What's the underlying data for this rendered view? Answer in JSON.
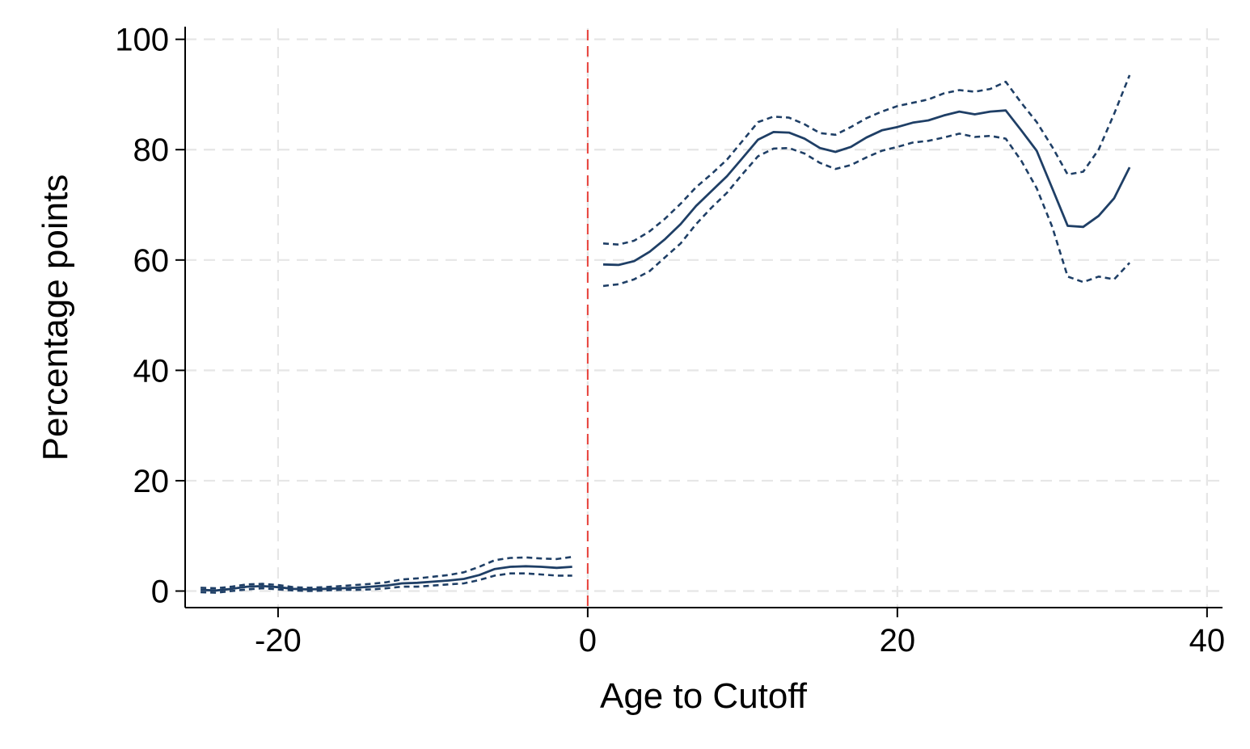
{
  "chart_data": {
    "type": "line",
    "title": "",
    "xlabel": "Age to Cutoff",
    "ylabel": "Percentage points",
    "xlim": [
      -26,
      41
    ],
    "ylim": [
      -3,
      102
    ],
    "xticks": [
      -20,
      0,
      20,
      40
    ],
    "yticks": [
      0,
      20,
      40,
      60,
      80,
      100
    ],
    "grid": true,
    "legend": "none",
    "cutoff_line": {
      "x": 0,
      "color": "#e8413a",
      "style": "dashed"
    },
    "colors": {
      "series": "#1f3f66",
      "grid": "#e6e6e6",
      "axis": "#000000"
    },
    "series": [
      {
        "segment": "below",
        "style": "solid",
        "x": [
          -25,
          -24,
          -23,
          -22,
          -21,
          -20,
          -19,
          -18,
          -17,
          -16,
          -15,
          -14,
          -13,
          -12,
          -11,
          -10,
          -9,
          -8,
          -7,
          -6,
          -5,
          -4,
          -3,
          -2,
          -1
        ],
        "y": [
          0.2,
          0.1,
          0.4,
          0.8,
          0.9,
          0.7,
          0.4,
          0.3,
          0.4,
          0.5,
          0.6,
          0.8,
          1.0,
          1.4,
          1.5,
          1.7,
          1.9,
          2.2,
          2.9,
          4.0,
          4.4,
          4.5,
          4.4,
          4.2,
          4.4
        ]
      },
      {
        "segment": "below",
        "style": "dashed",
        "x": [
          -25,
          -24,
          -23,
          -22,
          -21,
          -20,
          -19,
          -18,
          -17,
          -16,
          -15,
          -14,
          -13,
          -12,
          -11,
          -10,
          -9,
          -8,
          -7,
          -6,
          -5,
          -4,
          -3,
          -2,
          -1
        ],
        "y": [
          0.6,
          0.5,
          0.8,
          1.2,
          1.3,
          1.1,
          0.7,
          0.6,
          0.7,
          0.9,
          1.1,
          1.3,
          1.6,
          2.1,
          2.3,
          2.6,
          2.9,
          3.4,
          4.4,
          5.6,
          6.0,
          6.1,
          5.9,
          5.8,
          6.2
        ]
      },
      {
        "segment": "below",
        "style": "dashed",
        "x": [
          -25,
          -24,
          -23,
          -22,
          -21,
          -20,
          -19,
          -18,
          -17,
          -16,
          -15,
          -14,
          -13,
          -12,
          -11,
          -10,
          -9,
          -8,
          -7,
          -6,
          -5,
          -4,
          -3,
          -2,
          -1
        ],
        "y": [
          -0.2,
          -0.3,
          0.0,
          0.3,
          0.5,
          0.3,
          0.1,
          0.0,
          0.1,
          0.2,
          0.2,
          0.3,
          0.5,
          0.8,
          0.8,
          1.0,
          1.2,
          1.4,
          2.0,
          2.8,
          3.2,
          3.2,
          3.0,
          2.8,
          2.8
        ]
      },
      {
        "segment": "above",
        "style": "solid",
        "x": [
          1,
          2,
          3,
          4,
          5,
          6,
          7,
          8,
          9,
          10,
          11,
          12,
          13,
          14,
          15,
          16,
          17,
          18,
          19,
          20,
          21,
          22,
          23,
          24,
          25,
          26,
          27,
          28,
          29,
          30,
          31,
          32,
          33,
          34,
          35
        ],
        "y": [
          59.2,
          59.1,
          59.8,
          61.5,
          63.8,
          66.5,
          69.8,
          72.5,
          75.2,
          78.5,
          81.8,
          83.2,
          83.1,
          82.0,
          80.3,
          79.6,
          80.5,
          82.2,
          83.5,
          84.1,
          84.9,
          85.3,
          86.2,
          86.9,
          86.4,
          86.9,
          87.1,
          83.5,
          79.8,
          73.0,
          66.2,
          66.0,
          68.0,
          71.2,
          76.8
        ]
      },
      {
        "segment": "above",
        "style": "dashed",
        "x": [
          1,
          2,
          3,
          4,
          5,
          6,
          7,
          8,
          9,
          10,
          11,
          12,
          13,
          14,
          15,
          16,
          17,
          18,
          19,
          20,
          21,
          22,
          23,
          24,
          25,
          26,
          27,
          28,
          29,
          30,
          31,
          32,
          33,
          34,
          35
        ],
        "y": [
          63.0,
          62.8,
          63.5,
          65.2,
          67.5,
          70.2,
          73.2,
          75.6,
          78.2,
          81.6,
          85.0,
          86.0,
          85.8,
          84.6,
          83.0,
          82.7,
          84.1,
          85.7,
          86.9,
          87.9,
          88.5,
          89.1,
          90.2,
          90.8,
          90.5,
          91.0,
          92.3,
          88.5,
          85.0,
          80.5,
          75.5,
          76.0,
          80.0,
          86.5,
          93.5
        ]
      },
      {
        "segment": "above",
        "style": "dashed",
        "x": [
          1,
          2,
          3,
          4,
          5,
          6,
          7,
          8,
          9,
          10,
          11,
          12,
          13,
          14,
          15,
          16,
          17,
          18,
          19,
          20,
          21,
          22,
          23,
          24,
          25,
          26,
          27,
          28,
          29,
          30,
          31,
          32,
          33,
          34,
          35
        ],
        "y": [
          55.3,
          55.6,
          56.5,
          58.0,
          60.5,
          63.0,
          66.5,
          69.5,
          72.2,
          75.6,
          78.8,
          80.2,
          80.3,
          79.3,
          77.6,
          76.5,
          77.2,
          78.6,
          79.8,
          80.5,
          81.3,
          81.6,
          82.2,
          82.9,
          82.3,
          82.5,
          82.0,
          78.0,
          73.0,
          66.0,
          57.0,
          56.0,
          57.0,
          56.5,
          59.5
        ]
      }
    ]
  }
}
